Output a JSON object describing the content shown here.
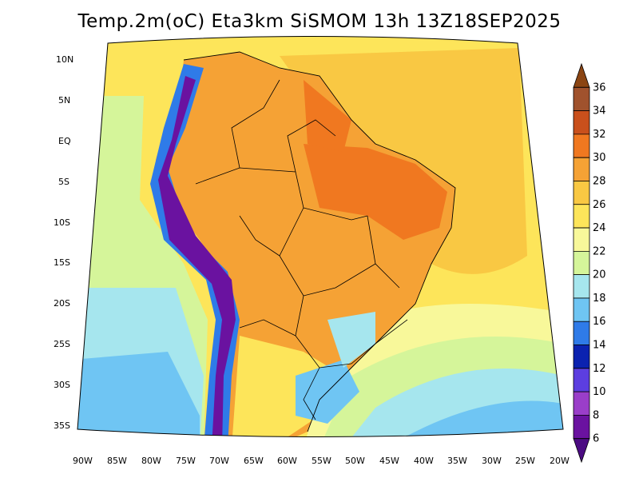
{
  "title": "Temp.2m(oC) Eta3km SiSMOM 13h 13Z18SEP2025",
  "map": {
    "lat_labels": [
      "10N",
      "5N",
      "EQ",
      "5S",
      "10S",
      "15S",
      "20S",
      "25S",
      "30S",
      "35S"
    ],
    "lon_labels": [
      "90W",
      "85W",
      "80W",
      "75W",
      "70W",
      "65W",
      "60W",
      "55W",
      "50W",
      "45W",
      "40W",
      "35W",
      "30W",
      "25W",
      "20W"
    ],
    "lat_range": [
      -38,
      12
    ],
    "lon_range": [
      -91,
      -19
    ]
  },
  "colorbar": {
    "labels": [
      "36",
      "34",
      "32",
      "30",
      "28",
      "26",
      "24",
      "22",
      "20",
      "18",
      "16",
      "14",
      "12",
      "10",
      "8",
      "6"
    ],
    "colors": [
      "#8b4513",
      "#a0522d",
      "#c9501c",
      "#f07820",
      "#f5a235",
      "#f9c843",
      "#fde55a",
      "#f8f89a",
      "#d5f59a",
      "#a6e6ee",
      "#6fc5f3",
      "#2f7be8",
      "#0b22b0",
      "#5c3ee0",
      "#9a3ec9",
      "#6a12a0",
      "#4b0b82"
    ]
  }
}
